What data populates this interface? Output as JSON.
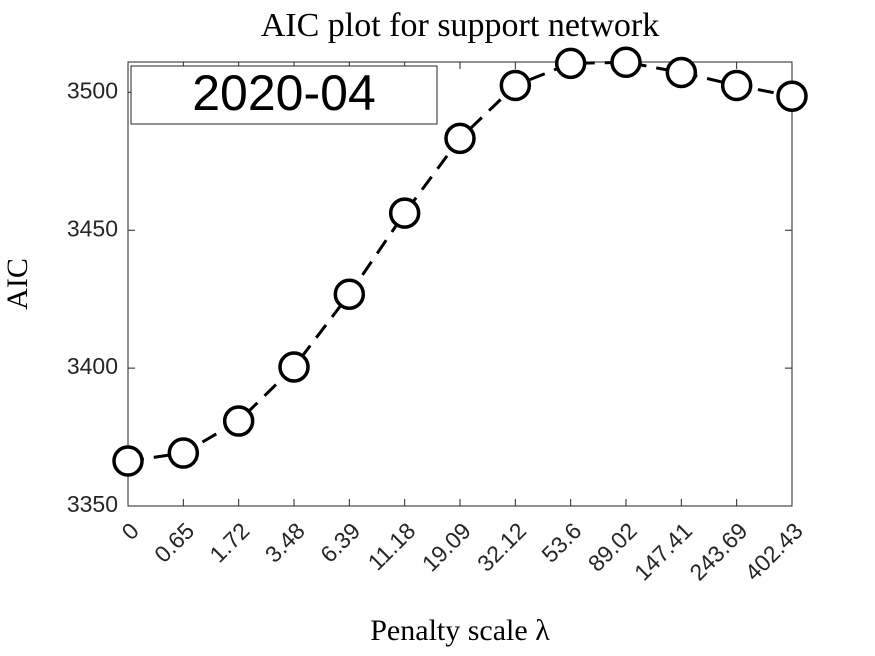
{
  "chart_data": {
    "type": "line",
    "title": "AIC plot for support network",
    "xlabel": "Penalty scale λ",
    "ylabel": "AIC",
    "annotation": "2020-04",
    "categories": [
      "0",
      "0.65",
      "1.72",
      "3.48",
      "6.39",
      "11.18",
      "19.09",
      "32.12",
      "53.6",
      "89.02",
      "147.41",
      "243.69",
      "402.43"
    ],
    "values": [
      3366.3,
      3369.2,
      3380.8,
      3400.4,
      3426.8,
      3456.2,
      3483.3,
      3502.5,
      3510.5,
      3510.9,
      3507.2,
      3502.5,
      3498.6
    ],
    "color": "#000000",
    "line_style": "dashed",
    "marker": "circle",
    "ylim": [
      3350,
      3511
    ],
    "yticks": [
      3350,
      3400,
      3450,
      3500
    ],
    "grid": false
  }
}
